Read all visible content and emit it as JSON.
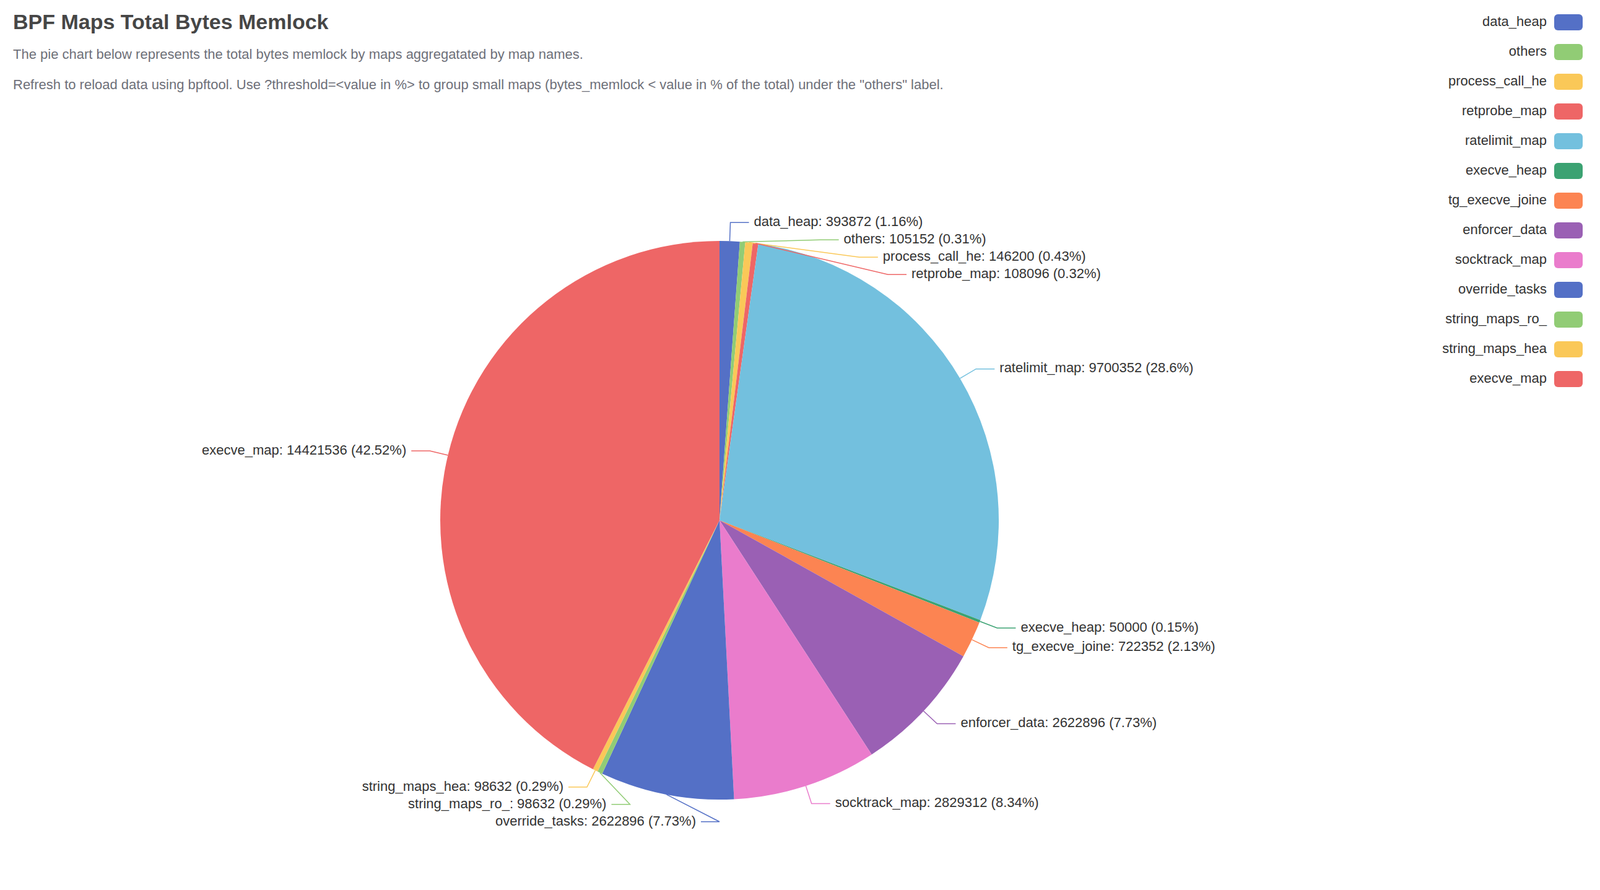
{
  "chart_data": {
    "type": "pie",
    "title": "BPF Maps Total Bytes Memlock",
    "subtitle": [
      "The pie chart below represents the total bytes memlock by maps aggregatated by map names.",
      "Refresh to reload data using bpftool. Use ?threshold=<value in %> to group small maps (bytes_memlock < value in % of the total) under the \"others\" label."
    ],
    "categories": [
      "data_heap",
      "others",
      "process_call_he",
      "retprobe_map",
      "ratelimit_map",
      "execve_heap",
      "tg_execve_joine",
      "enforcer_data",
      "socktrack_map",
      "override_tasks",
      "string_maps_ro_",
      "string_maps_hea",
      "execve_map"
    ],
    "values": [
      393872,
      105152,
      146200,
      108096,
      9700352,
      50000,
      722352,
      2622896,
      2829312,
      2622896,
      98632,
      98632,
      14421536
    ],
    "value_labels": [
      "data_heap: 393872 (1.16%)",
      "others: 105152 (0.31%)",
      "process_call_he: 146200 (0.43%)",
      "retprobe_map: 108096 (0.32%)",
      "ratelimit_map: 9700352 (28.6%)",
      "execve_heap: 50000 (0.15%)",
      "tg_execve_joine: 722352 (2.13%)",
      "enforcer_data: 2622896 (7.73%)",
      "socktrack_map: 2829312 (8.34%)",
      "override_tasks: 2622896 (7.73%)",
      "string_maps_ro_: 98632 (0.29%)",
      "string_maps_hea: 98632 (0.29%)",
      "execve_map: 14421536 (42.52%)"
    ],
    "colors": [
      "#5470c6",
      "#91cc75",
      "#fac858",
      "#ee6666",
      "#73c0de",
      "#3ba272",
      "#fc8452",
      "#9a60b4",
      "#ea7ccc",
      "#5470c6",
      "#91cc75",
      "#fac858",
      "#ee6666"
    ],
    "data_labels": true,
    "legend": "top-right"
  }
}
